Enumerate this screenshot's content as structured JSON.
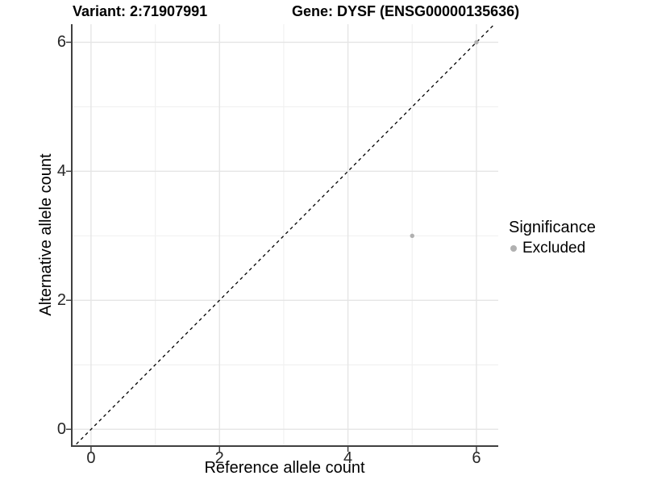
{
  "titles": {
    "variant": "Variant: 2:71907991",
    "gene": "Gene: DYSF (ENSG00000135636)"
  },
  "legend": {
    "title": "Significance",
    "items": [
      {
        "label": "Excluded",
        "color": "#b0b0b0"
      }
    ]
  },
  "chart_data": {
    "type": "scatter",
    "title": "Variant: 2:71907991  /  Gene: DYSF (ENSG00000135636)",
    "xlabel": "Reference allele count",
    "ylabel": "Alternative allele count",
    "xlim": [
      -0.3,
      6.34
    ],
    "ylim": [
      -0.26,
      6.28
    ],
    "xticks": [
      0,
      2,
      4,
      6
    ],
    "yticks": [
      0,
      2,
      4,
      6
    ],
    "minor_xticks": [
      1,
      3,
      5
    ],
    "minor_yticks": [
      1,
      3,
      5
    ],
    "grid": "on",
    "legend_position": "right",
    "series": [
      {
        "name": "Excluded",
        "color": "#b0b0b0",
        "points": [
          {
            "x": 5,
            "y": 3
          },
          {
            "x": 6,
            "y": 6
          }
        ]
      }
    ],
    "reference_line": {
      "type": "identity y=x",
      "style": "dashed",
      "color": "#000000"
    }
  },
  "colors": {
    "background": "#ffffff",
    "major_grid": "#e5e5e5",
    "minor_grid": "#f1f1f1",
    "axis_line": "#404040",
    "tick_mark": "#404040",
    "tick_label": "#262626",
    "point": "#b0b0b0",
    "reference_line": "#000000"
  }
}
